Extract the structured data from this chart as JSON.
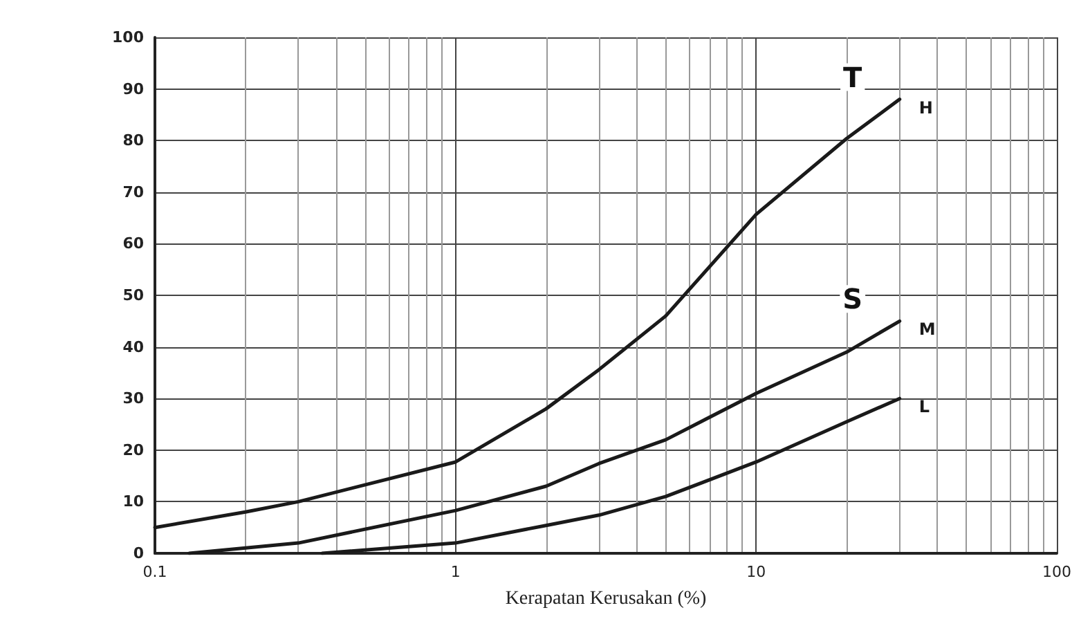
{
  "chart_data": {
    "type": "line",
    "xlabel": "Kerapatan Kerusakan (%)",
    "log": "x",
    "xlim": [
      0.1,
      100
    ],
    "xticks": [
      0.1,
      1,
      10,
      100
    ],
    "ylim": [
      0,
      100
    ],
    "yticks": [
      0,
      10,
      20,
      30,
      40,
      50,
      60,
      70,
      80,
      90,
      100
    ],
    "grid": true,
    "legend": false,
    "marker": "none",
    "line_style": "solid",
    "series": [
      {
        "name": "H",
        "color": "#1a1a1a",
        "x": [
          0.1,
          0.2,
          0.3,
          1,
          2,
          3,
          5,
          10,
          20,
          30
        ],
        "values": [
          5,
          8,
          10,
          17.7,
          28,
          35.6,
          46,
          65.7,
          80.4,
          88
        ]
      },
      {
        "name": "M",
        "color": "#1a1a1a",
        "x": [
          0.13,
          0.3,
          1,
          2,
          3,
          5,
          10,
          20,
          30
        ],
        "values": [
          0,
          2,
          8.3,
          13,
          17.4,
          22,
          31,
          39,
          45
        ]
      },
      {
        "name": "L",
        "color": "#1a1a1a",
        "x": [
          0.36,
          1,
          2,
          3,
          5,
          10,
          20,
          30
        ],
        "values": [
          0,
          2,
          5.4,
          7.4,
          11,
          17.7,
          25.5,
          30
        ]
      }
    ],
    "annotations": [
      "T",
      "S"
    ]
  }
}
